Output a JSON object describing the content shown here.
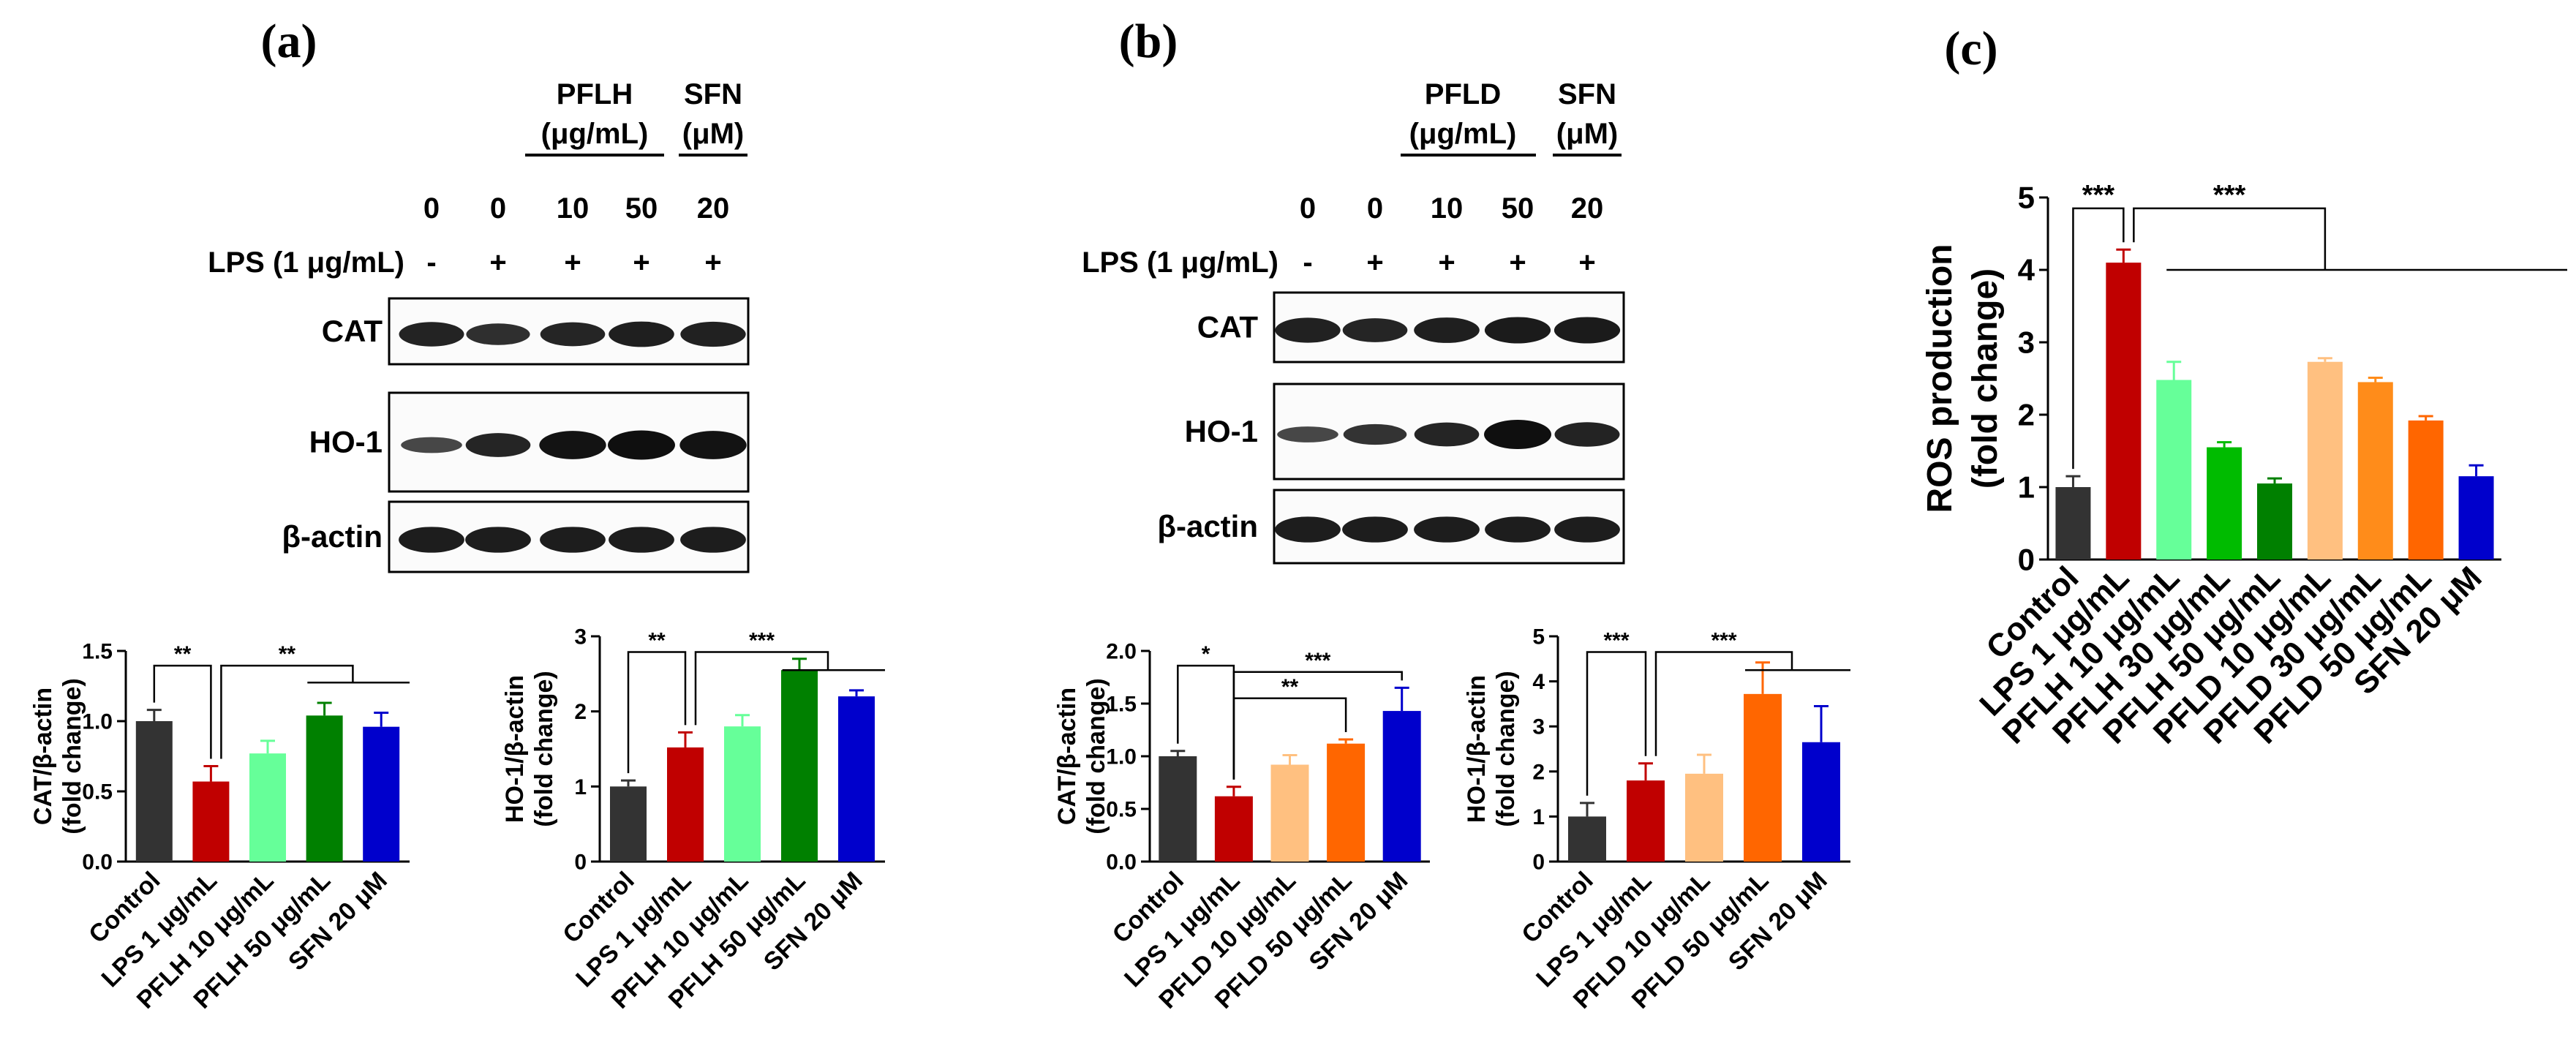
{
  "colors": {
    "control": "#333333",
    "lps": "#c00000",
    "low": "#66ff99",
    "mid": "#00bb00",
    "high": "#008000",
    "sfn": "#0000cc",
    "pfld_low": "#ffc080",
    "pfld_mid": "#ff8c1a",
    "pfld_high": "#ff6600"
  },
  "panel_a": {
    "label": "(a)",
    "blot": {
      "group_label": "PFLH",
      "group_unit": "(μg/mL)",
      "sfn_label": "SFN",
      "sfn_unit": "(μM)",
      "doses": [
        "0",
        "0",
        "10",
        "50",
        "20"
      ],
      "lps_label": "LPS (1 μg/mL)",
      "lps": [
        "-",
        "+",
        "+",
        "+",
        "+"
      ],
      "rows": [
        "CAT",
        "HO-1",
        "β-actin"
      ],
      "band_intensity": [
        [
          0.75,
          0.6,
          0.72,
          0.8,
          0.78
        ],
        [
          0.3,
          0.72,
          0.95,
          1.0,
          0.95
        ],
        [
          0.82,
          0.82,
          0.82,
          0.82,
          0.82
        ]
      ]
    }
  },
  "panel_b": {
    "label": "(b)",
    "blot": {
      "group_label": "PFLD",
      "group_unit": "(μg/mL)",
      "sfn_label": "SFN",
      "sfn_unit": "(μM)",
      "doses": [
        "0",
        "0",
        "10",
        "50",
        "20"
      ],
      "lps_label": "LPS (1 μg/mL)",
      "lps": [
        "-",
        "+",
        "+",
        "+",
        "+"
      ],
      "rows": [
        "CAT",
        "HO-1",
        "β-actin"
      ],
      "band_intensity": [
        [
          0.78,
          0.72,
          0.8,
          0.85,
          0.85
        ],
        [
          0.3,
          0.55,
          0.72,
          1.0,
          0.75
        ],
        [
          0.82,
          0.82,
          0.82,
          0.82,
          0.82
        ]
      ]
    }
  },
  "panel_c": {
    "label": "(c)"
  },
  "chart_data": [
    {
      "type": "bar",
      "ylabel": "CAT/β-actin",
      "ylabel2": "(fold change)",
      "ylim": [
        0,
        1.5
      ],
      "ticks": [
        "0.0",
        "0.5",
        "1.0",
        "1.5"
      ],
      "categories": [
        "Control",
        "LPS 1 μg/mL",
        "PFLH 10 μg/mL",
        "PFLH 50 μg/mL",
        "SFN 20 μM"
      ],
      "values": [
        1.0,
        0.57,
        0.77,
        1.04,
        0.96
      ],
      "errors": [
        0.08,
        0.11,
        0.09,
        0.09,
        0.1
      ],
      "color_keys": [
        "control",
        "lps",
        "low",
        "high",
        "sfn"
      ],
      "significance": [
        {
          "label": "**",
          "type": "pair",
          "from": 0,
          "to": 1
        },
        {
          "label": "**",
          "type": "group",
          "from": 1,
          "to": [
            3,
            4
          ]
        }
      ]
    },
    {
      "type": "bar",
      "ylabel": "HO-1/β-actin",
      "ylabel2": "(fold change)",
      "ylim": [
        0,
        3
      ],
      "ticks": [
        "0",
        "1",
        "2",
        "3"
      ],
      "categories": [
        "Control",
        "LPS 1 μg/mL",
        "PFLH 10 μg/mL",
        "PFLH 50 μg/mL",
        "SFN 20 μM"
      ],
      "values": [
        1.0,
        1.52,
        1.8,
        2.55,
        2.2
      ],
      "errors": [
        0.08,
        0.2,
        0.15,
        0.15,
        0.08
      ],
      "color_keys": [
        "control",
        "lps",
        "low",
        "high",
        "sfn"
      ],
      "significance": [
        {
          "label": "**",
          "type": "pair",
          "from": 0,
          "to": 1
        },
        {
          "label": "***",
          "type": "group",
          "from": 1,
          "to": [
            3,
            4
          ]
        }
      ]
    },
    {
      "type": "bar",
      "ylabel": "CAT/β-actin",
      "ylabel2": "(fold change)",
      "ylim": [
        0,
        2.0
      ],
      "ticks": [
        "0.0",
        "0.5",
        "1.0",
        "1.5",
        "2.0"
      ],
      "categories": [
        "Control",
        "LPS 1 μg/mL",
        "PFLD 10 μg/mL",
        "PFLD 50 μg/mL",
        "SFN 20 μM"
      ],
      "values": [
        1.0,
        0.62,
        0.92,
        1.12,
        1.43
      ],
      "errors": [
        0.05,
        0.09,
        0.09,
        0.04,
        0.22
      ],
      "color_keys": [
        "control",
        "lps",
        "pfld_low",
        "pfld_high",
        "sfn"
      ],
      "significance": [
        {
          "label": "*",
          "type": "pair",
          "from": 0,
          "to": 1
        },
        {
          "label": "**",
          "type": "pair",
          "from": 1,
          "to": 3
        },
        {
          "label": "***",
          "type": "pair",
          "from": 1,
          "to": 4
        }
      ]
    },
    {
      "type": "bar",
      "ylabel": "HO-1/β-actin",
      "ylabel2": "(fold change)",
      "ylim": [
        0,
        5
      ],
      "ticks": [
        "0",
        "1",
        "2",
        "3",
        "4",
        "5"
      ],
      "categories": [
        "Control",
        "LPS 1 μg/mL",
        "PFLD 10 μg/mL",
        "PFLD 50 μg/mL",
        "SFN 20 μM"
      ],
      "values": [
        1.0,
        1.8,
        1.95,
        3.72,
        2.65
      ],
      "errors": [
        0.3,
        0.38,
        0.42,
        0.7,
        0.8
      ],
      "color_keys": [
        "control",
        "lps",
        "pfld_low",
        "pfld_high",
        "sfn"
      ],
      "significance": [
        {
          "label": "***",
          "type": "pair",
          "from": 0,
          "to": 1
        },
        {
          "label": "***",
          "type": "group",
          "from": 1,
          "to": [
            3,
            4
          ]
        }
      ]
    },
    {
      "type": "bar",
      "ylabel": "ROS production",
      "ylabel2": "(fold change)",
      "ylim": [
        0,
        5
      ],
      "ticks": [
        "0",
        "1",
        "2",
        "3",
        "4",
        "5"
      ],
      "categories": [
        "Control",
        "LPS 1 μg/mL",
        "PFLH 10 μg/mL",
        "PFLH 30 μg/mL",
        "PFLH 50 μg/mL",
        "PFLD 10 μg/mL",
        "PFLD 30 μg/mL",
        "PFLD 50 μg/mL",
        "SFN 20 μM"
      ],
      "values": [
        1.0,
        4.1,
        2.48,
        1.55,
        1.05,
        2.73,
        2.45,
        1.92,
        1.15
      ],
      "errors": [
        0.15,
        0.18,
        0.25,
        0.07,
        0.07,
        0.05,
        0.06,
        0.06,
        0.15
      ],
      "color_keys": [
        "control",
        "lps",
        "low",
        "mid",
        "high",
        "pfld_low",
        "pfld_mid",
        "pfld_high",
        "sfn"
      ],
      "significance": [
        {
          "label": "***",
          "type": "pair",
          "from": 0,
          "to": 1
        },
        {
          "label": "***",
          "type": "group",
          "from": 1,
          "to": [
            2,
            3,
            4,
            5,
            6,
            7,
            8
          ]
        }
      ]
    }
  ]
}
